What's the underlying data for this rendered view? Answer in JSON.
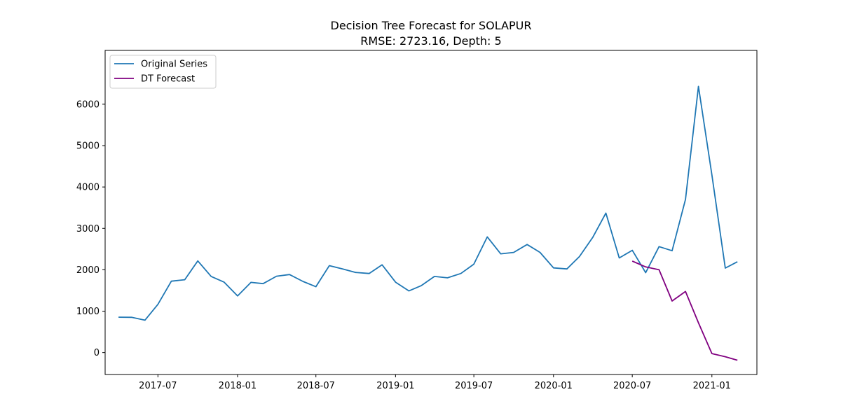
{
  "chart_data": {
    "type": "line",
    "title": "Decision Tree Forecast for SOLAPUR",
    "subtitle": "RMSE: 2723.16, Depth: 5",
    "xlabel": "",
    "ylabel": "",
    "x_ticks": [
      "2017-07",
      "2018-01",
      "2018-07",
      "2019-01",
      "2019-07",
      "2020-01",
      "2020-07",
      "2021-01"
    ],
    "y_ticks": [
      "0",
      "1000",
      "2000",
      "3000",
      "4000",
      "5000",
      "6000"
    ],
    "xlim": [
      "2017-03-01",
      "2021-04-15"
    ],
    "ylim": [
      -530,
      7300
    ],
    "grid": false,
    "legend_position": "top-left",
    "series": [
      {
        "name": "Original Series",
        "color": "#1f77b4",
        "x": [
          "2017-04",
          "2017-05",
          "2017-06",
          "2017-07",
          "2017-08",
          "2017-09",
          "2017-10",
          "2017-11",
          "2017-12",
          "2018-01",
          "2018-02",
          "2018-03",
          "2018-04",
          "2018-05",
          "2018-06",
          "2018-07",
          "2018-08",
          "2018-09",
          "2018-10",
          "2018-11",
          "2018-12",
          "2019-01",
          "2019-02",
          "2019-03",
          "2019-04",
          "2019-05",
          "2019-06",
          "2019-07",
          "2019-08",
          "2019-09",
          "2019-10",
          "2019-11",
          "2019-12",
          "2020-01",
          "2020-02",
          "2020-03",
          "2020-04",
          "2020-05",
          "2020-06",
          "2020-07",
          "2020-08",
          "2020-09",
          "2020-10",
          "2020-11",
          "2020-12",
          "2021-01",
          "2021-02",
          "2021-03"
        ],
        "values": [
          855,
          852,
          782,
          1165,
          1725,
          1760,
          2215,
          1840,
          1700,
          1370,
          1695,
          1665,
          1845,
          1885,
          1720,
          1590,
          2100,
          2020,
          1935,
          1910,
          2120,
          1700,
          1490,
          1615,
          1840,
          1805,
          1910,
          2135,
          2795,
          2385,
          2420,
          2610,
          2420,
          2045,
          2020,
          2320,
          2790,
          3370,
          2285,
          2470,
          1930,
          2560,
          2460,
          3700,
          6430,
          4290,
          2040,
          2195
        ]
      },
      {
        "name": "DT Forecast",
        "color": "#800080",
        "x": [
          "2020-07",
          "2020-08",
          "2020-09",
          "2020-10",
          "2020-11",
          "2020-12",
          "2021-01",
          "2021-02",
          "2021-03"
        ],
        "values": [
          2210,
          2070,
          2000,
          1245,
          1475,
          720,
          -25,
          -100,
          -185
        ]
      }
    ]
  }
}
